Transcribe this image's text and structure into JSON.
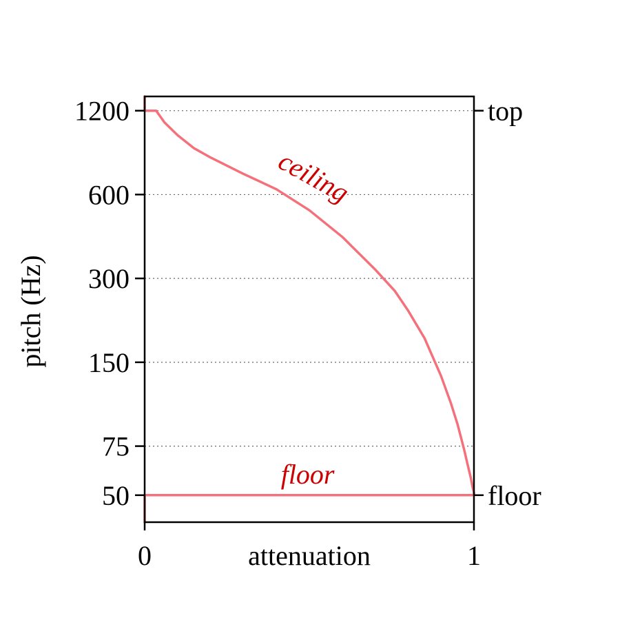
{
  "chart_data": {
    "type": "line",
    "title": "",
    "xlabel": "attenuation",
    "ylabel": "pitch (Hz)",
    "xlim": [
      0,
      1
    ],
    "ylim": [
      40,
      1350
    ],
    "yscale": "log",
    "x_ticks": [
      {
        "value": 0,
        "label": "0"
      },
      {
        "value": 1,
        "label": "1"
      }
    ],
    "y_ticks": [
      {
        "value": 50,
        "label": "50"
      },
      {
        "value": 75,
        "label": "75"
      },
      {
        "value": 150,
        "label": "150"
      },
      {
        "value": 300,
        "label": "300"
      },
      {
        "value": 600,
        "label": "600"
      },
      {
        "value": 1200,
        "label": "1200"
      }
    ],
    "grid": "dotted horizontal at y ticks",
    "right_axis_labels": [
      {
        "value": 1200,
        "label": "top"
      },
      {
        "value": 50,
        "label": "floor"
      }
    ],
    "line_color": "#f4707a",
    "label_color": "#cc0000",
    "series": [
      {
        "name": "ceiling",
        "x": [
          0,
          0,
          0.035,
          0.06,
          0.1,
          0.15,
          0.2,
          0.3,
          0.4,
          0.5,
          0.6,
          0.7,
          0.76,
          0.8,
          0.85,
          0.9,
          0.93,
          0.95,
          0.97,
          0.98,
          0.99,
          0.995,
          1,
          1
        ],
        "y": [
          1350,
          1200,
          1200,
          1090,
          980,
          880,
          815,
          712,
          627,
          527,
          423,
          323,
          270,
          230,
          183,
          134,
          107,
          90,
          73,
          65,
          58,
          54,
          51,
          50
        ]
      },
      {
        "name": "floor",
        "x": [
          0,
          0,
          1
        ],
        "y": [
          40,
          50,
          50
        ]
      }
    ],
    "annotations": [
      {
        "text": "ceiling",
        "x": 0.5,
        "y": 650
      },
      {
        "text": "floor",
        "x": 0.495,
        "y": 55
      }
    ]
  }
}
